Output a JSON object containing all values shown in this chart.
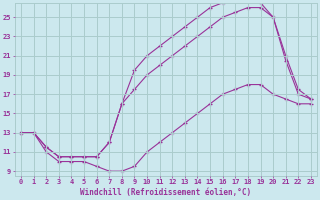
{
  "background_color": "#cce8ee",
  "grid_color": "#aacccc",
  "line_color": "#993399",
  "xlabel": "Windchill (Refroidissement éolien,°C)",
  "xlim": [
    -0.5,
    23.5
  ],
  "ylim": [
    8.5,
    26.5
  ],
  "yticks": [
    9,
    11,
    13,
    15,
    17,
    19,
    21,
    23,
    25
  ],
  "xticks": [
    0,
    1,
    2,
    3,
    4,
    5,
    6,
    7,
    8,
    9,
    10,
    11,
    12,
    13,
    14,
    15,
    16,
    17,
    18,
    19,
    20,
    21,
    22,
    23
  ],
  "series": [
    {
      "x": [
        0,
        1,
        2,
        3,
        4,
        5,
        6,
        7,
        8,
        9,
        10,
        11,
        12,
        13,
        14,
        15,
        16,
        17,
        18,
        19,
        20,
        21,
        22,
        23
      ],
      "y": [
        13,
        13,
        11.5,
        10.5,
        10.5,
        10.5,
        10.5,
        12,
        16,
        19.5,
        21,
        22,
        23,
        24,
        25,
        26,
        26.5,
        27,
        27,
        26.5,
        25,
        20.5,
        17,
        16.5
      ]
    },
    {
      "x": [
        0,
        1,
        2,
        3,
        4,
        5,
        6,
        7,
        8,
        9,
        10,
        11,
        12,
        13,
        14,
        15,
        16,
        17,
        18,
        19,
        20,
        21,
        22,
        23
      ],
      "y": [
        13,
        13,
        11.5,
        10.5,
        10.5,
        10.5,
        10.5,
        12,
        16,
        17.5,
        19,
        20,
        21,
        22,
        23,
        24,
        25,
        25.5,
        26,
        26,
        25,
        21,
        17.5,
        16.5
      ]
    },
    {
      "x": [
        0,
        1,
        2,
        3,
        4,
        5,
        6,
        7,
        8,
        9,
        10,
        11,
        12,
        13,
        14,
        15,
        16,
        17,
        18,
        19,
        20,
        21,
        22,
        23
      ],
      "y": [
        13,
        13,
        11,
        10,
        10,
        10,
        9.5,
        9,
        9,
        9.5,
        11,
        12,
        13,
        14,
        15,
        16,
        17,
        17.5,
        18,
        18,
        17,
        16.5,
        16,
        16
      ]
    }
  ]
}
